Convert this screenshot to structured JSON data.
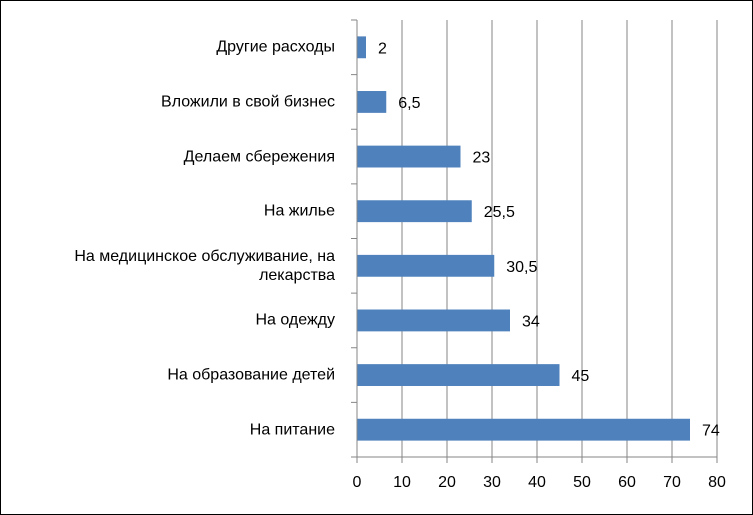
{
  "chart_data": {
    "type": "bar",
    "orientation": "horizontal",
    "categories": [
      "Другие расходы",
      "Вложили в свой бизнес",
      "Делаем сбережения",
      "На жилье",
      "На медицинское обслуживание, на лекарства",
      "На одежду",
      "На образование детей",
      "На питание"
    ],
    "values": [
      2,
      6.5,
      23,
      25.5,
      30.5,
      34,
      45,
      74
    ],
    "data_labels": [
      "2",
      "6,5",
      "23",
      "25,5",
      "30,5",
      "34",
      "45",
      "74"
    ],
    "xlim": [
      0,
      80
    ],
    "xticks": [
      "0",
      "10",
      "20",
      "30",
      "40",
      "50",
      "60",
      "70",
      "80"
    ],
    "grid": "vertical",
    "bar_color": "#4F81BD",
    "grid_color": "#868686",
    "legend": "none"
  }
}
